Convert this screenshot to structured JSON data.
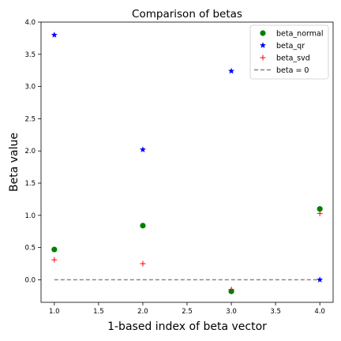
{
  "chart_data": {
    "type": "scatter",
    "title": "Comparison of betas",
    "xlabel": "1-based index of beta vector",
    "ylabel": "Beta value",
    "xlim": [
      0.85,
      4.15
    ],
    "ylim": [
      -0.35,
      4.0
    ],
    "x_ticks": [
      1.0,
      1.5,
      2.0,
      2.5,
      3.0,
      3.5,
      4.0
    ],
    "x_tick_labels": [
      "1.0",
      "1.5",
      "2.0",
      "2.5",
      "3.0",
      "3.5",
      "4.0"
    ],
    "y_ticks": [
      0.0,
      0.5,
      1.0,
      1.5,
      2.0,
      2.5,
      3.0,
      3.5,
      4.0
    ],
    "y_tick_labels": [
      "0.0",
      "0.5",
      "1.0",
      "1.5",
      "2.0",
      "2.5",
      "3.0",
      "3.5",
      "4.0"
    ],
    "grid": false,
    "legend_position": "top-right",
    "series": [
      {
        "name": "beta_normal",
        "marker": "circle",
        "color": "#008000",
        "x": [
          1,
          2,
          3,
          4
        ],
        "y": [
          0.47,
          0.84,
          -0.18,
          1.1
        ]
      },
      {
        "name": "beta_qr",
        "marker": "star",
        "color": "#0000ff",
        "x": [
          1,
          2,
          3,
          4
        ],
        "y": [
          3.8,
          2.02,
          3.24,
          0.0
        ]
      },
      {
        "name": "beta_svd",
        "marker": "plus",
        "color": "#ff0000",
        "x": [
          1,
          2,
          3,
          4
        ],
        "y": [
          0.31,
          0.25,
          -0.15,
          1.03
        ]
      }
    ],
    "reference_line": {
      "name": "beta = 0",
      "y": 0,
      "x_range": [
        1,
        4
      ],
      "color": "#808080",
      "style": "dashed"
    }
  }
}
